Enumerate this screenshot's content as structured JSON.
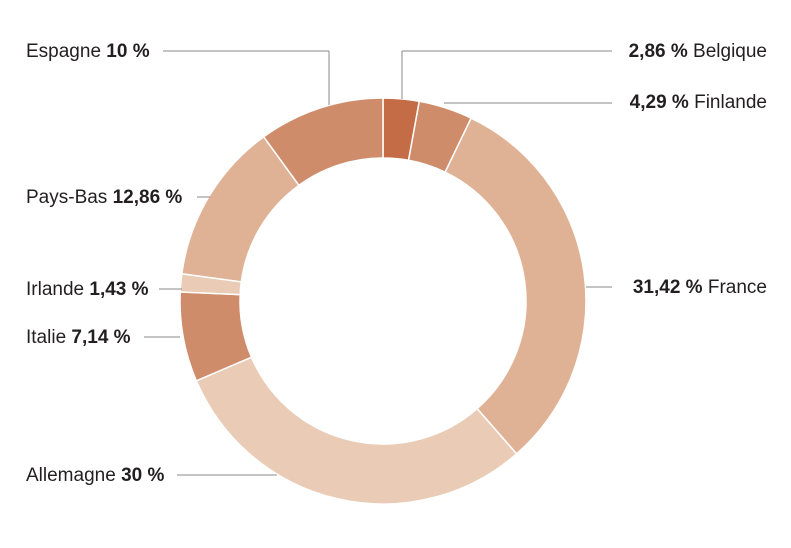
{
  "chart_data": {
    "type": "pie",
    "variant": "donut",
    "slices": [
      {
        "label": "Belgique",
        "value": 2.86,
        "value_label": "2,86 %",
        "color": "#c46c46"
      },
      {
        "label": "Finlande",
        "value": 4.29,
        "value_label": "4,29 %",
        "color": "#cf8c6b"
      },
      {
        "label": "France",
        "value": 31.42,
        "value_label": "31,42 %",
        "color": "#e0b295"
      },
      {
        "label": "Allemagne",
        "value": 30,
        "value_label": "30 %",
        "color": "#eacbb5"
      },
      {
        "label": "Italie",
        "value": 7.14,
        "value_label": "7,14 %",
        "color": "#cf8c6b"
      },
      {
        "label": "Irlande",
        "value": 1.43,
        "value_label": "1,43 %",
        "color": "#eacbb5"
      },
      {
        "label": "Pays-Bas",
        "value": 12.86,
        "value_label": "12,86 %",
        "color": "#e0b295"
      },
      {
        "label": "Espagne",
        "value": 10,
        "value_label": "10 %",
        "color": "#cf8c6b"
      }
    ],
    "start": "top",
    "direction": "clockwise"
  }
}
